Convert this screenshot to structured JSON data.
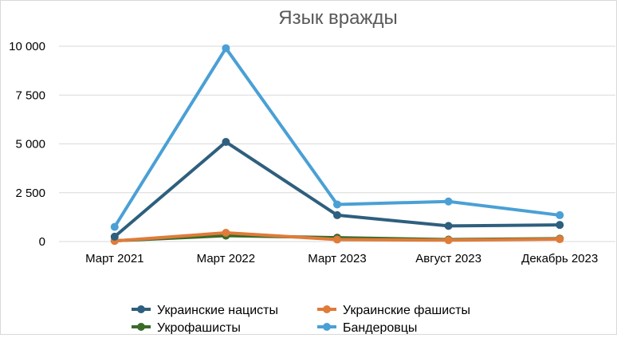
{
  "chart_data": {
    "type": "line",
    "title": "Язык вражды",
    "xlabel": "",
    "ylabel": "",
    "categories": [
      "Март 2021",
      "Март 2022",
      "Март 2023",
      "Август 2023",
      "Декабрь 2023"
    ],
    "y_ticks": [
      "0",
      "2 500",
      "5 000",
      "7 500",
      "10 000"
    ],
    "ylim": [
      0,
      10000
    ],
    "grid": "horizontal",
    "legend_position": "bottom",
    "series": [
      {
        "name": "Украинские нацисты",
        "color": "#2e5f7e",
        "values": [
          250,
          5100,
          1350,
          800,
          850
        ]
      },
      {
        "name": "Украинские фашисты",
        "color": "#e07b39",
        "values": [
          30,
          450,
          100,
          70,
          120
        ]
      },
      {
        "name": "Укрофашисты",
        "color": "#3a6b2a",
        "values": [
          40,
          300,
          200,
          100,
          150
        ]
      },
      {
        "name": "Бандеровцы",
        "color": "#4aa0d5",
        "values": [
          750,
          9900,
          1900,
          2050,
          1350
        ]
      }
    ]
  }
}
